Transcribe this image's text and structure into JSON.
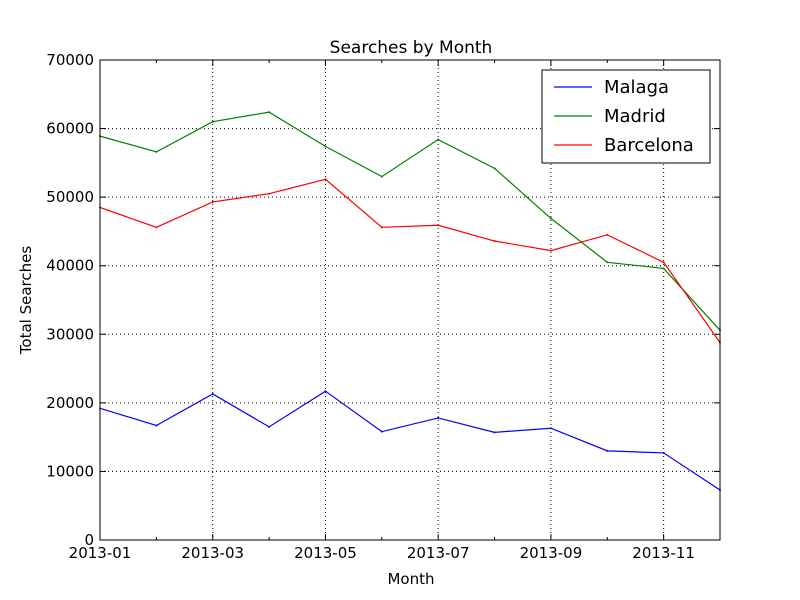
{
  "chart_data": {
    "type": "line",
    "title": "Searches by Month",
    "xlabel": "Month",
    "ylabel": "Total Searches",
    "x": [
      "2013-01",
      "2013-02",
      "2013-03",
      "2013-04",
      "2013-05",
      "2013-06",
      "2013-07",
      "2013-08",
      "2013-09",
      "2013-10",
      "2013-11",
      "2013-12"
    ],
    "x_tick_labels": [
      "2013-01",
      "2013-03",
      "2013-05",
      "2013-07",
      "2013-09",
      "2013-11"
    ],
    "y_tick_labels": [
      "0",
      "10000",
      "20000",
      "30000",
      "40000",
      "50000",
      "60000",
      "70000"
    ],
    "ylim": [
      0,
      70000
    ],
    "grid": true,
    "legend_position": "top-right",
    "series": [
      {
        "name": "Malaga",
        "color": "#0000ff",
        "values": [
          19200,
          16700,
          21300,
          16500,
          21700,
          15800,
          17800,
          15700,
          16300,
          13000,
          12700,
          7300
        ]
      },
      {
        "name": "Madrid",
        "color": "#008000",
        "values": [
          58900,
          56600,
          61000,
          62400,
          57400,
          53000,
          58400,
          54200,
          46900,
          40500,
          39600,
          30600
        ]
      },
      {
        "name": "Barcelona",
        "color": "#ff0000",
        "values": [
          48500,
          45600,
          49300,
          50500,
          52600,
          45600,
          45900,
          43600,
          42200,
          44500,
          40500,
          28800
        ]
      }
    ]
  }
}
